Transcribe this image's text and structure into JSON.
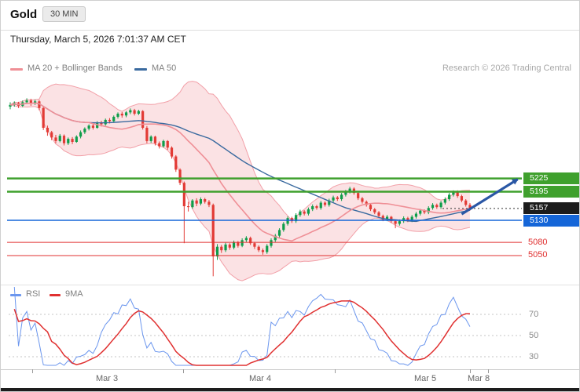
{
  "header": {
    "title": "Gold",
    "timeframe": "30 MIN",
    "datetime": "Thursday, March 5, 2026 7:01:37 AM CET"
  },
  "legend": {
    "ma20": "MA 20 + Bollinger Bands",
    "ma50": "MA 50",
    "research": "Research © 2026 Trading Central"
  },
  "rsi_legend": {
    "rsi": "RSI",
    "ma": "9MA"
  },
  "colors": {
    "up": "#0e9d4a",
    "down": "#e23a35",
    "ma20": "#ef8f96",
    "band_fill": "#f6b9be",
    "band_edge": "#f2a0a8",
    "ma50": "#3a6a9f",
    "level_green": "#3fa02d",
    "level_blue": "#1566d8",
    "level_red": "#e03030",
    "label_black": "#1c1c1c",
    "rsi": "#6b96ee",
    "rsi_ma": "#e03030",
    "arrow": "#2a57a5"
  },
  "levels": [
    {
      "label": "5225",
      "price": 5225,
      "display": "box",
      "color": "#3fa02d",
      "line": "solid",
      "line_width": 2.5
    },
    {
      "label": "5195",
      "price": 5195,
      "display": "box",
      "color": "#3fa02d",
      "line": "solid",
      "line_width": 2.5
    },
    {
      "label": "5157",
      "price": 5157,
      "display": "box",
      "color": "#1c1c1c",
      "line": "dotted",
      "line_width": 1
    },
    {
      "label": "5130",
      "price": 5130,
      "display": "box",
      "color": "#1566d8",
      "line": "solid",
      "line_width": 1.6
    },
    {
      "label": "5080",
      "price": 5080,
      "display": "text",
      "color": "#e03030",
      "line": "solid",
      "line_width": 1
    },
    {
      "label": "5050",
      "price": 5050,
      "display": "text",
      "color": "#e03030",
      "line": "solid",
      "line_width": 1
    }
  ],
  "x_axis": {
    "labels": [
      {
        "text": "Mar 3",
        "x": 135
      },
      {
        "text": "Mar 4",
        "x": 330
      },
      {
        "text": "Mar 5",
        "x": 540
      },
      {
        "text": "Mar 8",
        "x": 608
      }
    ],
    "tick_x": [
      40,
      232,
      425,
      597,
      620
    ]
  },
  "rsi_axis": {
    "labels": [
      {
        "text": "70",
        "value": 70
      },
      {
        "text": "50",
        "value": 50
      },
      {
        "text": "30",
        "value": 30
      }
    ]
  },
  "chart_data": [
    {
      "type": "candlestick",
      "title": "Gold 30 MIN",
      "bar_interval": "30 min",
      "ylim": [
        4995,
        5420
      ],
      "horizontal_levels": [
        5225,
        5195,
        5157,
        5130,
        5080,
        5050
      ],
      "overlays": [
        {
          "name": "MA 20 + Bollinger Bands",
          "period": 20,
          "stddev": 2
        },
        {
          "name": "MA 50",
          "period": 50
        }
      ],
      "annotation_arrow": {
        "from_bar": 109,
        "from_price": 5144,
        "to_bar": 122.5,
        "to_price": 5223
      },
      "ohlc": [
        [
          5388,
          5398,
          5382,
          5392
        ],
        [
          5392,
          5400,
          5388,
          5396
        ],
        [
          5396,
          5399,
          5385,
          5390
        ],
        [
          5390,
          5402,
          5387,
          5398
        ],
        [
          5398,
          5407,
          5394,
          5402
        ],
        [
          5402,
          5406,
          5390,
          5395
        ],
        [
          5395,
          5404,
          5392,
          5400
        ],
        [
          5400,
          5403,
          5380,
          5385
        ],
        [
          5385,
          5388,
          5335,
          5340
        ],
        [
          5340,
          5345,
          5322,
          5330
        ],
        [
          5330,
          5333,
          5312,
          5318
        ],
        [
          5318,
          5324,
          5305,
          5310
        ],
        [
          5310,
          5326,
          5307,
          5322
        ],
        [
          5322,
          5325,
          5300,
          5305
        ],
        [
          5305,
          5318,
          5301,
          5315
        ],
        [
          5315,
          5319,
          5303,
          5308
        ],
        [
          5308,
          5323,
          5306,
          5320
        ],
        [
          5320,
          5334,
          5316,
          5330
        ],
        [
          5330,
          5341,
          5326,
          5338
        ],
        [
          5338,
          5348,
          5334,
          5345
        ],
        [
          5345,
          5349,
          5336,
          5340
        ],
        [
          5340,
          5355,
          5338,
          5352
        ],
        [
          5352,
          5356,
          5343,
          5348
        ],
        [
          5348,
          5361,
          5345,
          5358
        ],
        [
          5358,
          5362,
          5350,
          5355
        ],
        [
          5355,
          5368,
          5352,
          5365
        ],
        [
          5365,
          5375,
          5361,
          5372
        ],
        [
          5372,
          5376,
          5363,
          5368
        ],
        [
          5368,
          5378,
          5364,
          5375
        ],
        [
          5375,
          5384,
          5371,
          5380
        ],
        [
          5380,
          5383,
          5368,
          5372
        ],
        [
          5372,
          5381,
          5369,
          5378
        ],
        [
          5378,
          5380,
          5336,
          5340
        ],
        [
          5340,
          5344,
          5305,
          5310
        ],
        [
          5310,
          5323,
          5306,
          5320
        ],
        [
          5320,
          5322,
          5300,
          5305
        ],
        [
          5305,
          5309,
          5293,
          5298
        ],
        [
          5298,
          5313,
          5295,
          5310
        ],
        [
          5310,
          5312,
          5290,
          5295
        ],
        [
          5295,
          5298,
          5270,
          5275
        ],
        [
          5275,
          5278,
          5240,
          5245
        ],
        [
          5245,
          5248,
          5210,
          5215
        ],
        [
          5215,
          5218,
          5078,
          5162
        ],
        [
          5162,
          5172,
          5150,
          5160
        ],
        [
          5160,
          5178,
          5156,
          5175
        ],
        [
          5175,
          5180,
          5162,
          5168
        ],
        [
          5168,
          5182,
          5164,
          5178
        ],
        [
          5178,
          5181,
          5168,
          5172
        ],
        [
          5172,
          5176,
          5160,
          5165
        ],
        [
          5165,
          5168,
          5003,
          5048
        ],
        [
          5048,
          5076,
          5040,
          5070
        ],
        [
          5070,
          5074,
          5056,
          5062
        ],
        [
          5062,
          5079,
          5058,
          5075
        ],
        [
          5075,
          5078,
          5063,
          5068
        ],
        [
          5068,
          5084,
          5064,
          5080
        ],
        [
          5080,
          5083,
          5068,
          5072
        ],
        [
          5072,
          5089,
          5069,
          5085
        ],
        [
          5085,
          5094,
          5081,
          5090
        ],
        [
          5090,
          5093,
          5074,
          5078
        ],
        [
          5078,
          5081,
          5065,
          5070
        ],
        [
          5070,
          5073,
          5058,
          5062
        ],
        [
          5062,
          5066,
          5052,
          5058
        ],
        [
          5058,
          5076,
          5054,
          5072
        ],
        [
          5072,
          5089,
          5068,
          5085
        ],
        [
          5085,
          5099,
          5081,
          5095
        ],
        [
          5095,
          5112,
          5091,
          5108
        ],
        [
          5108,
          5126,
          5104,
          5122
        ],
        [
          5122,
          5139,
          5118,
          5135
        ],
        [
          5135,
          5138,
          5124,
          5128
        ],
        [
          5128,
          5146,
          5124,
          5142
        ],
        [
          5142,
          5154,
          5138,
          5150
        ],
        [
          5150,
          5153,
          5141,
          5145
        ],
        [
          5145,
          5159,
          5141,
          5155
        ],
        [
          5155,
          5166,
          5151,
          5162
        ],
        [
          5162,
          5165,
          5154,
          5158
        ],
        [
          5158,
          5174,
          5154,
          5170
        ],
        [
          5170,
          5173,
          5161,
          5165
        ],
        [
          5165,
          5179,
          5161,
          5175
        ],
        [
          5175,
          5186,
          5171,
          5182
        ],
        [
          5182,
          5185,
          5174,
          5178
        ],
        [
          5178,
          5192,
          5174,
          5188
        ],
        [
          5188,
          5199,
          5184,
          5195
        ],
        [
          5195,
          5206,
          5191,
          5202
        ],
        [
          5202,
          5205,
          5188,
          5192
        ],
        [
          5192,
          5195,
          5176,
          5180
        ],
        [
          5180,
          5183,
          5168,
          5172
        ],
        [
          5172,
          5175,
          5161,
          5165
        ],
        [
          5165,
          5168,
          5151,
          5155
        ],
        [
          5155,
          5158,
          5144,
          5148
        ],
        [
          5148,
          5151,
          5136,
          5140
        ],
        [
          5140,
          5143,
          5128,
          5132
        ],
        [
          5132,
          5142,
          5128,
          5138
        ],
        [
          5138,
          5140,
          5124,
          5128
        ],
        [
          5128,
          5131,
          5112,
          5122
        ],
        [
          5122,
          5132,
          5118,
          5128
        ],
        [
          5128,
          5139,
          5124,
          5135
        ],
        [
          5135,
          5138,
          5126,
          5130
        ],
        [
          5130,
          5142,
          5126,
          5138
        ],
        [
          5138,
          5149,
          5134,
          5145
        ],
        [
          5145,
          5156,
          5141,
          5152
        ],
        [
          5152,
          5155,
          5144,
          5148
        ],
        [
          5148,
          5162,
          5144,
          5158
        ],
        [
          5158,
          5169,
          5154,
          5165
        ],
        [
          5165,
          5168,
          5156,
          5160
        ],
        [
          5160,
          5174,
          5156,
          5170
        ],
        [
          5170,
          5182,
          5166,
          5178
        ],
        [
          5178,
          5192,
          5174,
          5188
        ],
        [
          5188,
          5198,
          5184,
          5195
        ],
        [
          5195,
          5198,
          5181,
          5185
        ],
        [
          5185,
          5188,
          5171,
          5175
        ],
        [
          5175,
          5178,
          5161,
          5165
        ],
        [
          5165,
          5169,
          5152,
          5157
        ]
      ]
    },
    {
      "type": "line",
      "title": "RSI",
      "series": [
        {
          "name": "RSI",
          "period": 14,
          "derived_from": "closes of ohlc above"
        },
        {
          "name": "9MA",
          "period": 9,
          "derived_from": "9-period SMA of RSI"
        }
      ],
      "gridlines": [
        70,
        50,
        30
      ],
      "ylim": [
        15,
        85
      ],
      "legend_position": "top-left"
    }
  ]
}
